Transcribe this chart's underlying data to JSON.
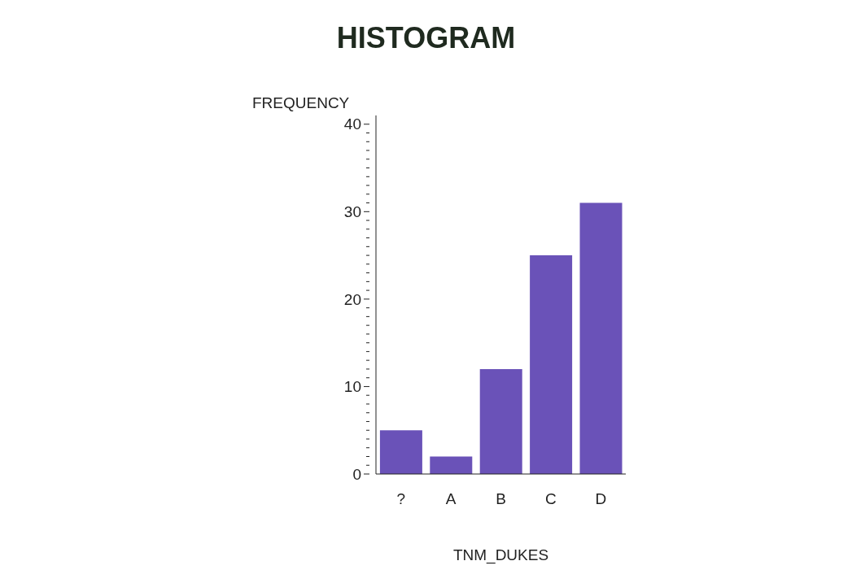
{
  "chart_data": {
    "type": "bar",
    "title": "HISTOGRAM",
    "xlabel": "TNM_DUKES",
    "ylabel": "FREQUENCY",
    "categories": [
      "?",
      "A",
      "B",
      "C",
      "D"
    ],
    "values": [
      5,
      2,
      12,
      25,
      31
    ],
    "color": "#6a52b8",
    "ylim": [
      0,
      41
    ],
    "yticks": [
      0,
      {
        "value": 1,
        "label": null
      },
      {
        "value": 2,
        "label": null
      },
      {
        "value": 3,
        "label": null
      },
      {
        "value": 4,
        "label": null
      },
      {
        "value": 5,
        "label": null
      },
      {
        "value": 6,
        "label": null
      },
      {
        "value": 7,
        "label": null
      },
      {
        "value": 8,
        "label": null
      },
      {
        "value": 9,
        "label": null
      },
      10,
      {
        "value": 11,
        "label": null
      },
      {
        "value": 12,
        "label": null
      },
      {
        "value": 13,
        "label": null
      },
      {
        "value": 14,
        "label": null
      },
      {
        "value": 15,
        "label": null
      },
      {
        "value": 16,
        "label": null
      },
      {
        "value": 17,
        "label": null
      },
      {
        "value": 18,
        "label": null
      },
      {
        "value": 19,
        "label": null
      },
      20,
      {
        "value": 21,
        "label": null
      },
      {
        "value": 22,
        "label": null
      },
      {
        "value": 23,
        "label": null
      },
      {
        "value": 24,
        "label": null
      },
      {
        "value": 25,
        "label": null
      },
      {
        "value": 26,
        "label": null
      },
      {
        "value": 27,
        "label": null
      },
      {
        "value": 28,
        "label": null
      },
      {
        "value": 29,
        "label": null
      },
      30,
      {
        "value": 31,
        "label": null
      },
      {
        "value": 32,
        "label": null
      },
      {
        "value": 33,
        "label": null
      },
      {
        "value": 34,
        "label": null
      },
      {
        "value": 35,
        "label": null
      },
      {
        "value": 36,
        "label": null
      },
      {
        "value": 37,
        "label": null
      },
      {
        "value": 38,
        "label": null
      },
      {
        "value": 39,
        "label": null
      },
      40
    ],
    "grid": false,
    "legend": false
  }
}
